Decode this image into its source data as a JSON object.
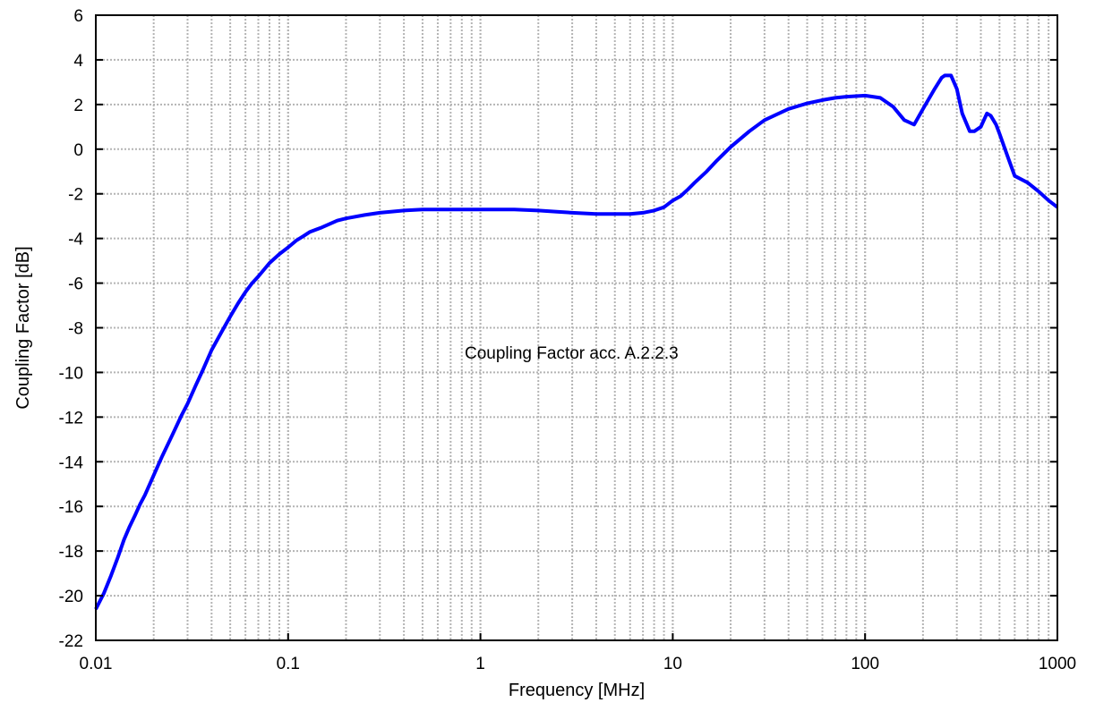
{
  "chart_data": {
    "type": "line",
    "title": "",
    "xlabel": "Frequency [MHz]",
    "ylabel": "Coupling Factor [dB]",
    "x_scale": "log",
    "xlim": [
      0.01,
      1000
    ],
    "ylim": [
      -22,
      6
    ],
    "grid": true,
    "x_ticks": [
      0.01,
      0.1,
      1,
      10,
      100,
      1000
    ],
    "x_tick_labels": [
      "0.01",
      "0.1",
      "1",
      "10",
      "100",
      "1000"
    ],
    "y_ticks": [
      -22,
      -20,
      -18,
      -16,
      -14,
      -12,
      -10,
      -8,
      -6,
      -4,
      -2,
      0,
      2,
      4,
      6
    ],
    "y_tick_labels": [
      "-22",
      "-20",
      "-18",
      "-16",
      "-14",
      "-12",
      "-10",
      "-8",
      "-6",
      "-4",
      "-2",
      "0",
      "2",
      "4",
      "6"
    ],
    "annotation": "Coupling Factor acc. A.2.2.3",
    "series": [
      {
        "color": "#0000ff",
        "x": [
          0.01,
          0.011,
          0.012,
          0.013,
          0.014,
          0.015,
          0.016,
          0.017,
          0.018,
          0.02,
          0.022,
          0.025,
          0.028,
          0.03,
          0.033,
          0.036,
          0.04,
          0.045,
          0.05,
          0.055,
          0.06,
          0.065,
          0.07,
          0.08,
          0.09,
          0.1,
          0.11,
          0.12,
          0.13,
          0.15,
          0.18,
          0.2,
          0.25,
          0.3,
          0.4,
          0.5,
          0.7,
          1,
          1.5,
          2,
          2.5,
          3,
          4,
          5,
          6,
          7,
          8,
          9,
          10,
          11,
          12,
          13,
          15,
          17,
          20,
          25,
          30,
          40,
          50,
          60,
          70,
          80,
          100,
          120,
          140,
          160,
          180,
          200,
          230,
          250,
          260,
          280,
          300,
          320,
          350,
          370,
          400,
          430,
          450,
          480,
          500,
          550,
          600,
          700,
          800,
          900,
          1000
        ],
        "y": [
          -20.6,
          -19.9,
          -19.1,
          -18.3,
          -17.5,
          -16.9,
          -16.4,
          -15.9,
          -15.5,
          -14.6,
          -13.8,
          -12.8,
          -11.9,
          -11.4,
          -10.6,
          -9.9,
          -9.0,
          -8.2,
          -7.5,
          -6.9,
          -6.4,
          -6.0,
          -5.7,
          -5.1,
          -4.7,
          -4.4,
          -4.1,
          -3.9,
          -3.7,
          -3.5,
          -3.2,
          -3.1,
          -2.95,
          -2.85,
          -2.75,
          -2.7,
          -2.7,
          -2.7,
          -2.7,
          -2.75,
          -2.8,
          -2.85,
          -2.9,
          -2.9,
          -2.9,
          -2.85,
          -2.75,
          -2.6,
          -2.3,
          -2.1,
          -1.8,
          -1.5,
          -1.0,
          -0.5,
          0.1,
          0.8,
          1.3,
          1.8,
          2.05,
          2.2,
          2.3,
          2.35,
          2.4,
          2.3,
          1.9,
          1.3,
          1.1,
          1.8,
          2.7,
          3.2,
          3.3,
          3.3,
          2.7,
          1.6,
          0.8,
          0.8,
          1.0,
          1.6,
          1.5,
          1.1,
          0.7,
          -0.3,
          -1.2,
          -1.5,
          -1.9,
          -2.3,
          -2.6
        ]
      }
    ]
  }
}
